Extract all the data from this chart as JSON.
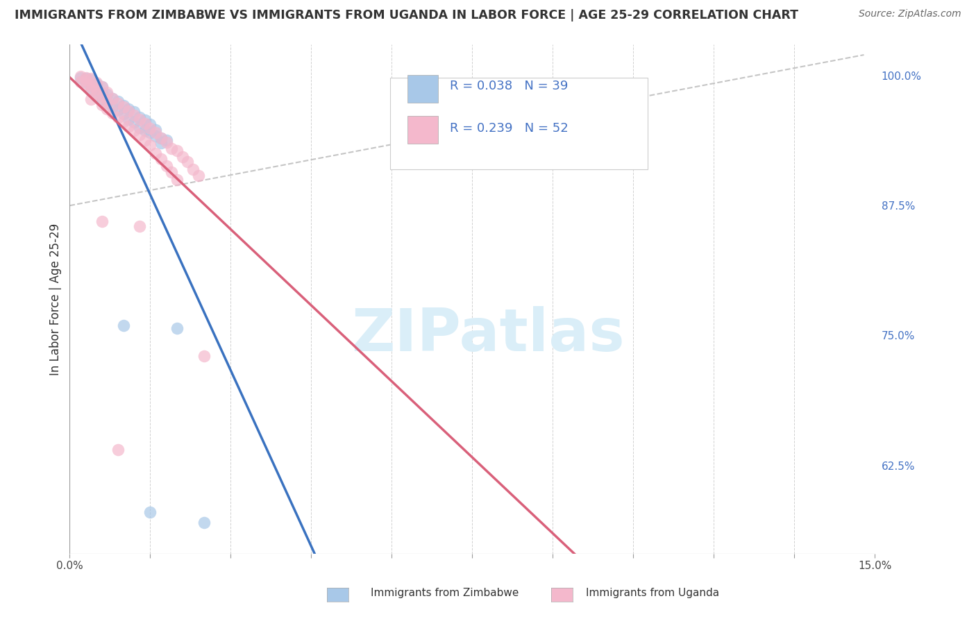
{
  "title": "IMMIGRANTS FROM ZIMBABWE VS IMMIGRANTS FROM UGANDA IN LABOR FORCE | AGE 25-29 CORRELATION CHART",
  "source": "Source: ZipAtlas.com",
  "ylabel": "In Labor Force | Age 25-29",
  "xlim": [
    0.0,
    0.15
  ],
  "ylim": [
    0.54,
    1.03
  ],
  "xticks": [
    0.0,
    0.015,
    0.03,
    0.045,
    0.06,
    0.075,
    0.09,
    0.105,
    0.12,
    0.135,
    0.15
  ],
  "xticklabels": [
    "0.0%",
    "",
    "",
    "",
    "",
    "",
    "",
    "",
    "",
    "",
    "15.0%"
  ],
  "yticks_right": [
    1.0,
    0.875,
    0.75,
    0.625
  ],
  "yticklabels_right": [
    "100.0%",
    "87.5%",
    "75.0%",
    "62.5%"
  ],
  "zim_R": 0.038,
  "zim_N": 39,
  "uga_R": 0.239,
  "uga_N": 52,
  "zim_color": "#a8c8e8",
  "uga_color": "#f4b8cc",
  "zim_line_color": "#3a72c0",
  "uga_line_color": "#d9607a",
  "watermark_color": "#daeef8",
  "background_color": "#ffffff",
  "grid_color": "#cccccc",
  "scatter_zim": [
    [
      0.002,
      0.998
    ],
    [
      0.003,
      0.997
    ],
    [
      0.004,
      0.996
    ],
    [
      0.003,
      0.993
    ],
    [
      0.005,
      0.992
    ],
    [
      0.004,
      0.99
    ],
    [
      0.006,
      0.989
    ],
    [
      0.005,
      0.987
    ],
    [
      0.004,
      0.985
    ],
    [
      0.006,
      0.983
    ],
    [
      0.007,
      0.982
    ],
    [
      0.005,
      0.98
    ],
    [
      0.008,
      0.978
    ],
    [
      0.006,
      0.977
    ],
    [
      0.009,
      0.975
    ],
    [
      0.007,
      0.973
    ],
    [
      0.01,
      0.971
    ],
    [
      0.008,
      0.97
    ],
    [
      0.011,
      0.968
    ],
    [
      0.009,
      0.967
    ],
    [
      0.012,
      0.965
    ],
    [
      0.01,
      0.963
    ],
    [
      0.013,
      0.96
    ],
    [
      0.011,
      0.958
    ],
    [
      0.014,
      0.957
    ],
    [
      0.012,
      0.955
    ],
    [
      0.015,
      0.953
    ],
    [
      0.013,
      0.95
    ],
    [
      0.016,
      0.948
    ],
    [
      0.014,
      0.947
    ],
    [
      0.015,
      0.945
    ],
    [
      0.016,
      0.942
    ],
    [
      0.017,
      0.94
    ],
    [
      0.018,
      0.938
    ],
    [
      0.017,
      0.935
    ],
    [
      0.01,
      0.76
    ],
    [
      0.02,
      0.757
    ],
    [
      0.015,
      0.58
    ],
    [
      0.025,
      0.57
    ]
  ],
  "scatter_uga": [
    [
      0.002,
      0.999
    ],
    [
      0.003,
      0.998
    ],
    [
      0.004,
      0.997
    ],
    [
      0.003,
      0.996
    ],
    [
      0.002,
      0.994
    ],
    [
      0.005,
      0.993
    ],
    [
      0.003,
      0.992
    ],
    [
      0.004,
      0.99
    ],
    [
      0.006,
      0.989
    ],
    [
      0.005,
      0.987
    ],
    [
      0.004,
      0.986
    ],
    [
      0.007,
      0.984
    ],
    [
      0.005,
      0.982
    ],
    [
      0.006,
      0.98
    ],
    [
      0.008,
      0.978
    ],
    [
      0.004,
      0.977
    ],
    [
      0.007,
      0.975
    ],
    [
      0.009,
      0.973
    ],
    [
      0.006,
      0.972
    ],
    [
      0.01,
      0.97
    ],
    [
      0.007,
      0.968
    ],
    [
      0.011,
      0.966
    ],
    [
      0.008,
      0.964
    ],
    [
      0.012,
      0.962
    ],
    [
      0.009,
      0.96
    ],
    [
      0.013,
      0.958
    ],
    [
      0.01,
      0.956
    ],
    [
      0.014,
      0.954
    ],
    [
      0.011,
      0.951
    ],
    [
      0.015,
      0.949
    ],
    [
      0.012,
      0.947
    ],
    [
      0.016,
      0.945
    ],
    [
      0.013,
      0.943
    ],
    [
      0.017,
      0.94
    ],
    [
      0.014,
      0.938
    ],
    [
      0.018,
      0.936
    ],
    [
      0.015,
      0.933
    ],
    [
      0.019,
      0.93
    ],
    [
      0.02,
      0.928
    ],
    [
      0.016,
      0.925
    ],
    [
      0.021,
      0.922
    ],
    [
      0.017,
      0.92
    ],
    [
      0.022,
      0.917
    ],
    [
      0.018,
      0.913
    ],
    [
      0.023,
      0.91
    ],
    [
      0.019,
      0.907
    ],
    [
      0.024,
      0.904
    ],
    [
      0.02,
      0.9
    ],
    [
      0.006,
      0.86
    ],
    [
      0.013,
      0.855
    ],
    [
      0.009,
      0.64
    ],
    [
      0.025,
      0.73
    ]
  ],
  "zim_trendline": [
    0.0,
    0.148,
    0.875,
    0.9
  ],
  "uga_trendline": [
    0.0,
    0.148,
    0.872,
    0.965
  ],
  "dash_line": [
    0.0,
    0.148,
    0.875,
    1.02
  ]
}
